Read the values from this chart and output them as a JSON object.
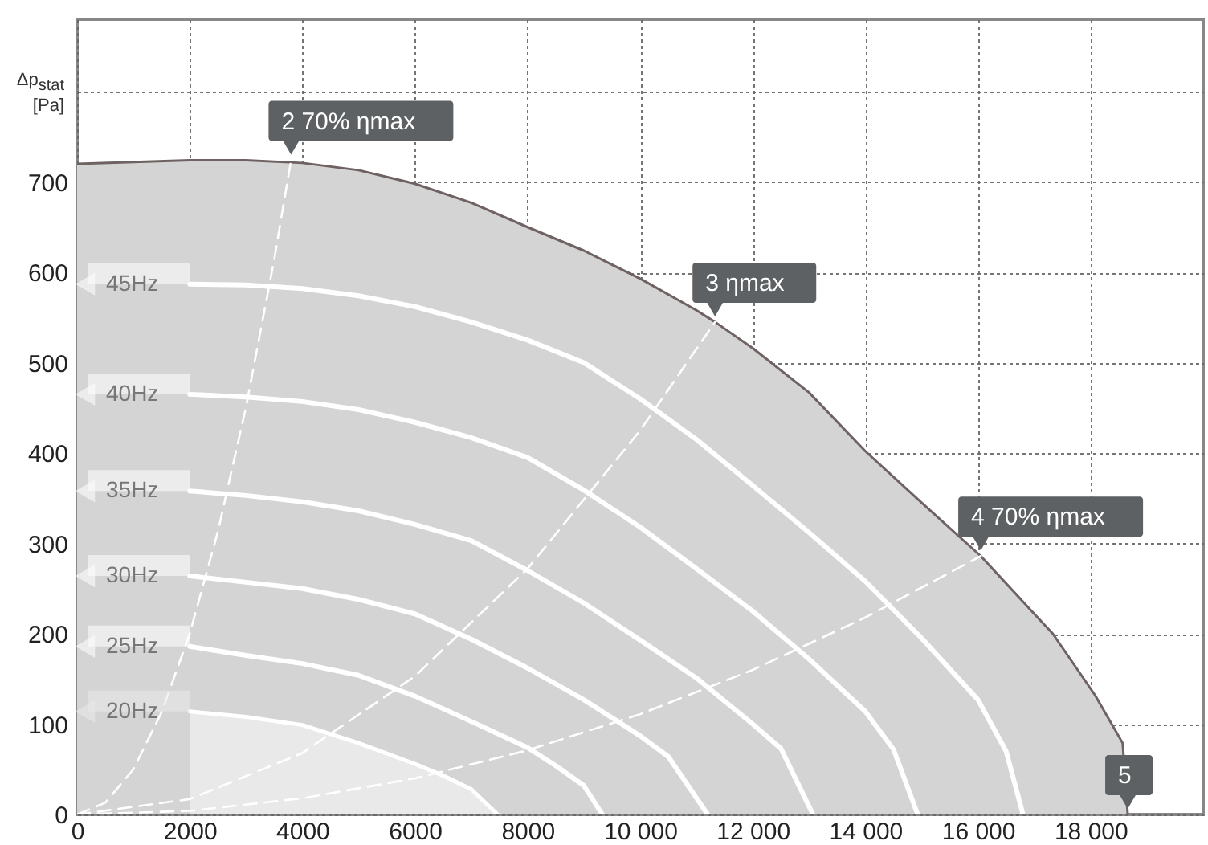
{
  "chart_data": {
    "type": "line",
    "ylabel": "Δp$_{stat}$ [Pa]",
    "xlim": [
      0,
      20000
    ],
    "ylim": [
      0,
      880
    ],
    "xticks": [
      0,
      2000,
      4000,
      6000,
      8000,
      {
        "value": 10000,
        "label": "10 000"
      },
      {
        "value": 12000,
        "label": "12 000"
      },
      {
        "value": 14000,
        "label": "14 000"
      },
      {
        "value": 16000,
        "label": "16 000"
      },
      {
        "value": 18000,
        "label": "18 000"
      }
    ],
    "yticks": [
      0,
      100,
      200,
      300,
      400,
      500,
      600,
      700,
      {
        "value": 800,
        "label": null
      }
    ],
    "grid": true,
    "legend": "left",
    "series": [
      {
        "type": "area",
        "color": "#d4d4d4",
        "x": [
          0,
          1000,
          2000,
          3000,
          4000,
          5000,
          6000,
          7000,
          8000,
          9000,
          10000,
          11000,
          11330,
          12000,
          13000,
          14000,
          15000,
          16050,
          17000,
          17330,
          18080,
          18570,
          18660
        ],
        "values": [
          720,
          722,
          724,
          724,
          721,
          713,
          698,
          677,
          650,
          624,
          593,
          558,
          545,
          516,
          467,
          402,
          345,
          286,
          222,
          200,
          132,
          79,
          0
        ]
      },
      {
        "type": "area",
        "name": "20Hz",
        "color": "#e9e9e9",
        "x": [
          2000,
          3000,
          4000,
          5000,
          6000,
          6500,
          7000,
          7470
        ],
        "values": [
          114,
          108,
          99,
          79,
          56,
          43,
          28,
          0
        ]
      },
      {
        "name": "25Hz",
        "color": "#ffffff",
        "x": [
          2000,
          3000,
          4000,
          5000,
          6000,
          7000,
          8000,
          8500,
          9000,
          9330
        ],
        "values": [
          186,
          176,
          167,
          154,
          131,
          103,
          74,
          54,
          32,
          0
        ]
      },
      {
        "name": "30Hz",
        "color": "#ffffff",
        "x": [
          2000,
          3000,
          4000,
          5000,
          6000,
          7000,
          8000,
          9000,
          10000,
          10500,
          11200
        ],
        "values": [
          264,
          257,
          250,
          238,
          222,
          194,
          162,
          127,
          87,
          64,
          0
        ]
      },
      {
        "name": "35Hz",
        "color": "#ffffff",
        "x": [
          2000,
          3000,
          4000,
          5000,
          6000,
          7000,
          8000,
          9000,
          10000,
          11000,
          12000,
          12500,
          13070
        ],
        "values": [
          358,
          353,
          346,
          336,
          321,
          303,
          270,
          234,
          193,
          151,
          100,
          73,
          0
        ]
      },
      {
        "name": "40Hz",
        "color": "#ffffff",
        "x": [
          2000,
          3000,
          4000,
          5000,
          6000,
          7000,
          8000,
          9000,
          10000,
          11000,
          12000,
          13000,
          14000,
          14500,
          14930
        ],
        "values": [
          465,
          462,
          457,
          448,
          434,
          417,
          395,
          359,
          318,
          272,
          225,
          172,
          114,
          72,
          0
        ]
      },
      {
        "name": "45Hz",
        "color": "#ffffff",
        "x": [
          2000,
          3000,
          4000,
          5000,
          6000,
          7000,
          8000,
          9000,
          10000,
          11000,
          12000,
          13000,
          14000,
          15000,
          16000,
          16500,
          16800
        ],
        "values": [
          587,
          586,
          582,
          574,
          562,
          545,
          525,
          500,
          460,
          415,
          364,
          312,
          258,
          195,
          127,
          70,
          0
        ]
      },
      {
        "line_style": "dashed",
        "color": "#ffffff",
        "x": [
          0,
          500,
          1000,
          1500,
          2000,
          2500,
          3000,
          3500,
          3800
        ],
        "values": [
          0,
          13,
          50,
          113,
          200,
          313,
          451,
          614,
          724
        ]
      },
      {
        "line_style": "dashed",
        "color": "#ffffff",
        "x": [
          0,
          2000,
          4000,
          6000,
          8000,
          10000,
          11330
        ],
        "values": [
          0,
          17,
          68,
          153,
          272,
          425,
          545
        ]
      },
      {
        "line_style": "dashed",
        "color": "#ffffff",
        "x": [
          0,
          2000,
          4000,
          6000,
          8000,
          10000,
          12000,
          14000,
          16050
        ],
        "values": [
          0,
          4,
          18,
          40,
          71,
          111,
          160,
          218,
          286
        ]
      }
    ],
    "annotations": [
      {
        "text": "2 70% ηmax",
        "x": 3800,
        "y": 724
      },
      {
        "text": "3 ηmax",
        "x": 11330,
        "y": 545
      },
      {
        "text": "4 70% ηmax",
        "x": 16050,
        "y": 286
      },
      {
        "text": "5",
        "x": 18660,
        "y": 0
      }
    ]
  }
}
